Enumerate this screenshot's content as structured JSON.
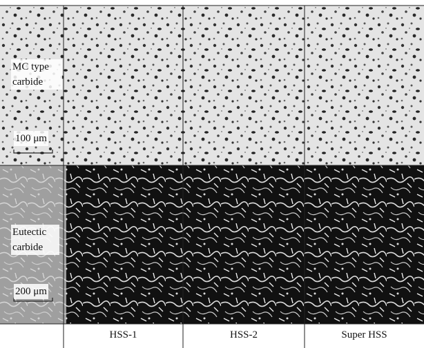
{
  "rows": [
    {
      "label": "MC type carbide",
      "scale": "100 μm"
    },
    {
      "label": "Eutectic carbide",
      "scale": "200 μm"
    }
  ],
  "columns": [
    "HSS-1",
    "HSS-2",
    "Super HSS"
  ]
}
